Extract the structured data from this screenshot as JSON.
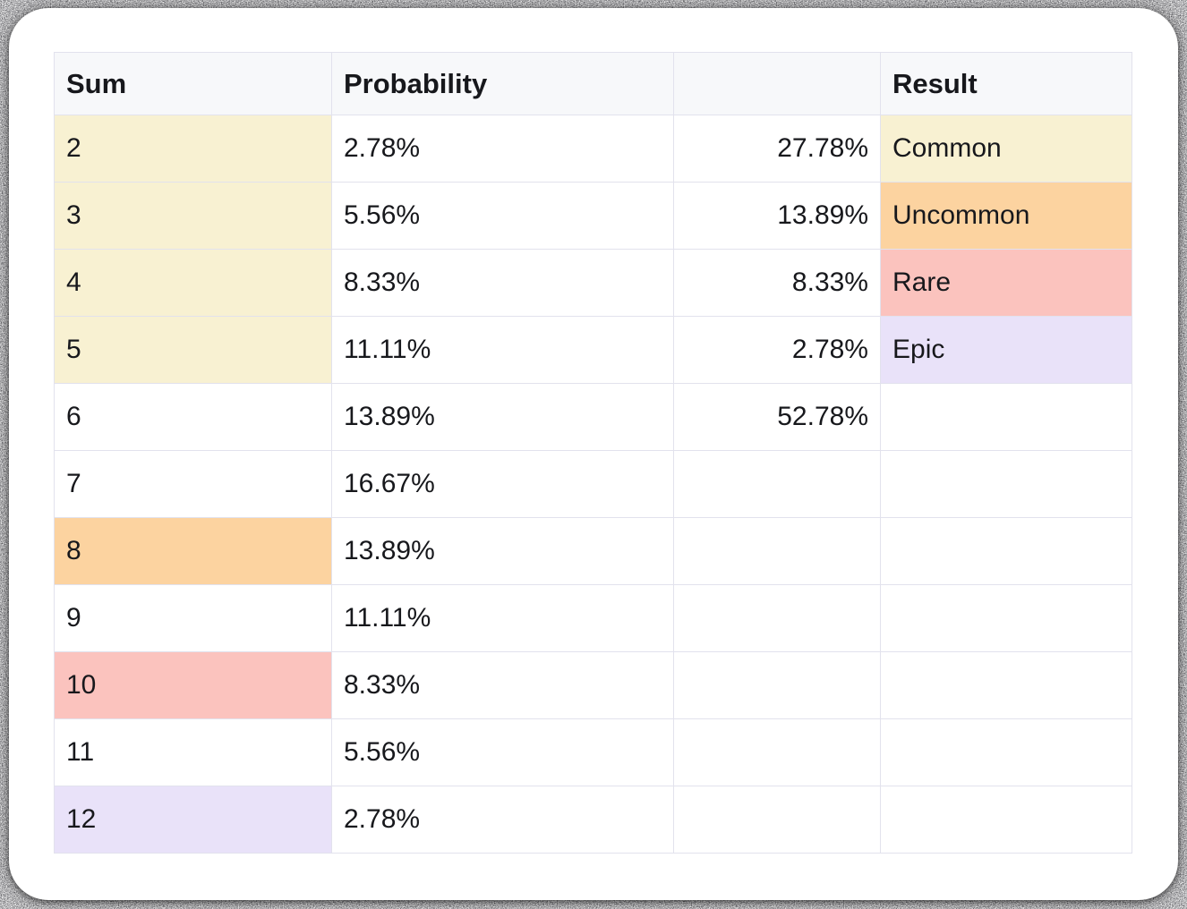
{
  "colors": {
    "cream": "#f8f1d2",
    "orange": "#fcd3a0",
    "pink": "#fbc3be",
    "lavender": "#e9e2f9",
    "header_bg": "#f7f8fa",
    "border": "#e2e2ed",
    "text": "#17181c",
    "card_bg": "#ffffff"
  },
  "table": {
    "columns": [
      {
        "key": "sum",
        "label": "Sum",
        "align": "left"
      },
      {
        "key": "probability",
        "label": "Probability",
        "align": "left"
      },
      {
        "key": "group_probability",
        "label": "",
        "align": "right"
      },
      {
        "key": "result",
        "label": "Result",
        "align": "left"
      }
    ],
    "rows": [
      {
        "sum": "2",
        "probability": "2.78%",
        "group_probability": "27.78%",
        "result": "Common",
        "sum_bg": "cream",
        "result_bg": "cream"
      },
      {
        "sum": "3",
        "probability": "5.56%",
        "group_probability": "13.89%",
        "result": "Uncommon",
        "sum_bg": "cream",
        "result_bg": "orange"
      },
      {
        "sum": "4",
        "probability": "8.33%",
        "group_probability": "8.33%",
        "result": "Rare",
        "sum_bg": "cream",
        "result_bg": "pink"
      },
      {
        "sum": "5",
        "probability": "11.11%",
        "group_probability": "2.78%",
        "result": "Epic",
        "sum_bg": "cream",
        "result_bg": "lavender"
      },
      {
        "sum": "6",
        "probability": "13.89%",
        "group_probability": "52.78%",
        "result": "",
        "sum_bg": null,
        "result_bg": null
      },
      {
        "sum": "7",
        "probability": "16.67%",
        "group_probability": "",
        "result": "",
        "sum_bg": null,
        "result_bg": null
      },
      {
        "sum": "8",
        "probability": "13.89%",
        "group_probability": "",
        "result": "",
        "sum_bg": "orange",
        "result_bg": null
      },
      {
        "sum": "9",
        "probability": "11.11%",
        "group_probability": "",
        "result": "",
        "sum_bg": null,
        "result_bg": null
      },
      {
        "sum": "10",
        "probability": "8.33%",
        "group_probability": "",
        "result": "",
        "sum_bg": "pink",
        "result_bg": null
      },
      {
        "sum": "11",
        "probability": "5.56%",
        "group_probability": "",
        "result": "",
        "sum_bg": null,
        "result_bg": null
      },
      {
        "sum": "12",
        "probability": "2.78%",
        "group_probability": "",
        "result": "",
        "sum_bg": "lavender",
        "result_bg": null
      }
    ]
  },
  "chart_data": {
    "type": "table",
    "title": "",
    "columns": [
      "Sum",
      "Probability",
      "",
      "Result"
    ],
    "rows": [
      [
        "2",
        "2.78%",
        "27.78%",
        "Common"
      ],
      [
        "3",
        "5.56%",
        "13.89%",
        "Uncommon"
      ],
      [
        "4",
        "8.33%",
        "8.33%",
        "Rare"
      ],
      [
        "5",
        "11.11%",
        "2.78%",
        "Epic"
      ],
      [
        "6",
        "13.89%",
        "52.78%",
        ""
      ],
      [
        "7",
        "16.67%",
        "",
        ""
      ],
      [
        "8",
        "13.89%",
        "",
        ""
      ],
      [
        "9",
        "11.11%",
        "",
        ""
      ],
      [
        "10",
        "8.33%",
        "",
        ""
      ],
      [
        "11",
        "5.56%",
        "",
        ""
      ],
      [
        "12",
        "2.78%",
        "",
        ""
      ]
    ],
    "highlights": {
      "sum_column": {
        "2": "cream",
        "3": "cream",
        "4": "cream",
        "5": "cream",
        "8": "orange",
        "10": "pink",
        "12": "lavender"
      },
      "result_column": {
        "Common": "cream",
        "Uncommon": "orange",
        "Rare": "pink",
        "Epic": "lavender"
      }
    }
  }
}
